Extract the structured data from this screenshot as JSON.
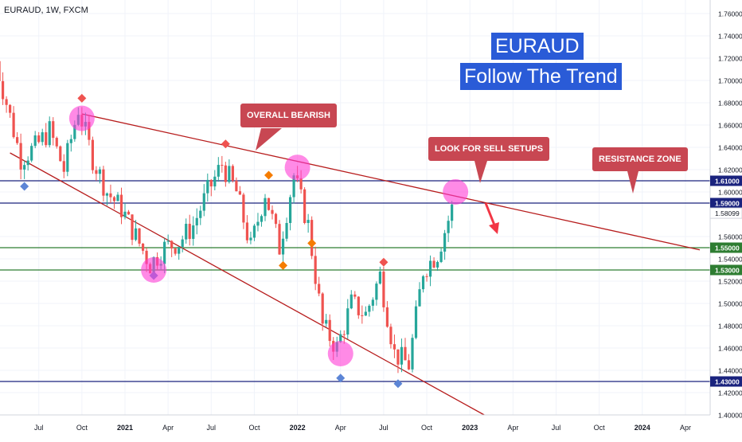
{
  "symbol": "EURAUD, 1W, FXCM",
  "title_box": {
    "line1": "EURAUD",
    "line2": "Follow The Trend"
  },
  "callouts": {
    "overall_bearish": "OVERALL BEARISH",
    "sell_setups": "LOOK FOR SELL SETUPS",
    "resistance_zone": "RESISTANCE ZONE"
  },
  "colors": {
    "bull": "#26a69a",
    "bear": "#ef5350",
    "navy": "#1a237e",
    "green_line": "#2e7d32",
    "trendline": "#b71c1c",
    "marker": "#ff3cd6",
    "title_bg": "#2a5bd7",
    "callout_bg": "#c84752"
  },
  "chart_data": {
    "type": "candlestick",
    "ylim": [
      1.4,
      1.77
    ],
    "y_ticks": [
      "1.76000",
      "1.74000",
      "1.72000",
      "1.70000",
      "1.68000",
      "1.66000",
      "1.64000",
      "1.62000",
      "1.60000",
      "1.56000",
      "1.54000",
      "1.52000",
      "1.50000",
      "1.48000",
      "1.46000",
      "1.44000",
      "1.42000",
      "1.40000"
    ],
    "x_ticks": [
      "Jul",
      "Oct",
      "2021",
      "Apr",
      "Jul",
      "Oct",
      "2022",
      "Apr",
      "Jul",
      "Oct",
      "2023",
      "Apr",
      "Jul",
      "Oct",
      "2024",
      "Apr"
    ],
    "horizontal_levels": [
      {
        "value": 1.61,
        "label": "1.61000",
        "color": "#1a237e"
      },
      {
        "value": 1.59,
        "label": "1.59000",
        "color": "#1a237e"
      },
      {
        "value": 1.55,
        "label": "1.55000",
        "color": "#2e7d32"
      },
      {
        "value": 1.53,
        "label": "1.53000",
        "color": "#2e7d32"
      },
      {
        "value": 1.43,
        "label": "1.43000",
        "color": "#1a237e"
      }
    ],
    "last_price": {
      "value": 1.58099,
      "label": "1.58099"
    },
    "trendlines": [
      {
        "from": [
          "Oct 2020",
          1.67
        ],
        "to": [
          "May 2024",
          1.548
        ],
        "color": "#b71c1c"
      },
      {
        "from": [
          "May 2020",
          1.635
        ],
        "to": [
          "Feb 2023",
          1.4
        ],
        "color": "#b71c1c"
      }
    ],
    "swing_highs": [
      {
        "date": "Oct 2020",
        "price": 1.684,
        "color": "#ef5350"
      },
      {
        "date": "Aug 2021",
        "price": 1.643,
        "color": "#ef5350"
      },
      {
        "date": "Nov 2021",
        "price": 1.615,
        "color": "#f57c00"
      },
      {
        "date": "Jul 2022",
        "price": 1.537,
        "color": "#ef5350"
      }
    ],
    "swing_lows": [
      {
        "date": "Jun 2020",
        "price": 1.605,
        "color": "#5c85d6"
      },
      {
        "date": "Mar 2021",
        "price": 1.525,
        "color": "#5c85d6"
      },
      {
        "date": "Dec 2021",
        "price": 1.534,
        "color": "#f57c00"
      },
      {
        "date": "Feb 2022",
        "price": 1.554,
        "color": "#f57c00"
      },
      {
        "date": "Apr 2022",
        "price": 1.433,
        "color": "#5c85d6"
      },
      {
        "date": "Aug 2022",
        "price": 1.428,
        "color": "#5c85d6"
      }
    ],
    "highlight_circles": [
      {
        "date": "Oct 2020",
        "price": 1.666
      },
      {
        "date": "Mar 2021",
        "price": 1.53
      },
      {
        "date": "Jan 2022",
        "price": 1.622
      },
      {
        "date": "Apr 2022",
        "price": 1.455
      },
      {
        "date": "Dec 2022",
        "price": 1.6
      }
    ],
    "close_path": [
      [
        "Apr 2020",
        1.73
      ],
      [
        "May 2020",
        1.68
      ],
      [
        "Jun 2020",
        1.63
      ],
      [
        "Jul 2020",
        1.64
      ],
      [
        "Aug 2020",
        1.655
      ],
      [
        "Sep 2020",
        1.62
      ],
      [
        "Oct 2020",
        1.675
      ],
      [
        "Nov 2020",
        1.63
      ],
      [
        "Dec 2020",
        1.6
      ],
      [
        "Jan 2021",
        1.585
      ],
      [
        "Feb 2021",
        1.56
      ],
      [
        "Mar 2021",
        1.535
      ],
      [
        "Apr 2021",
        1.55
      ],
      [
        "May 2021",
        1.555
      ],
      [
        "Jun 2021",
        1.57
      ],
      [
        "Jul 2021",
        1.6
      ],
      [
        "Aug 2021",
        1.625
      ],
      [
        "Sep 2021",
        1.6
      ],
      [
        "Oct 2021",
        1.55
      ],
      [
        "Nov 2021",
        1.6
      ],
      [
        "Dec 2021",
        1.55
      ],
      [
        "Jan 2022",
        1.615
      ],
      [
        "Feb 2022",
        1.57
      ],
      [
        "Mar 2022",
        1.48
      ],
      [
        "Apr 2022",
        1.46
      ],
      [
        "May 2022",
        1.5
      ],
      [
        "Jun 2022",
        1.49
      ],
      [
        "Jul 2022",
        1.525
      ],
      [
        "Aug 2022",
        1.455
      ],
      [
        "Sep 2022",
        1.445
      ],
      [
        "Oct 2022",
        1.53
      ],
      [
        "Nov 2022",
        1.545
      ],
      [
        "Dec 2022",
        1.585
      ]
    ]
  }
}
